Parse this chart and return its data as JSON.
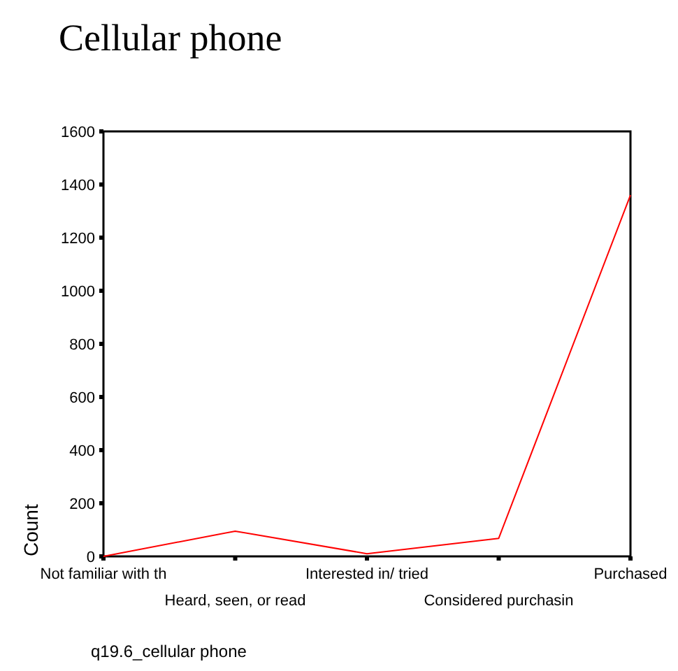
{
  "chart_data": {
    "type": "line",
    "title": "Cellular phone",
    "xlabel": "q19.6_cellular phone",
    "ylabel": "Count",
    "categories": [
      "Not familiar with th",
      "Heard, seen, or read",
      "Interested in/ tried",
      "Considered purchasin",
      "Purchased"
    ],
    "series": [
      {
        "color": "#ff0000",
        "values": [
          0,
          95,
          10,
          68,
          1360
        ]
      }
    ],
    "ylim": [
      0,
      1600
    ],
    "yticks": [
      0,
      200,
      400,
      600,
      800,
      1000,
      1200,
      1400,
      1600
    ],
    "marker": "none",
    "line_style": "solid"
  }
}
